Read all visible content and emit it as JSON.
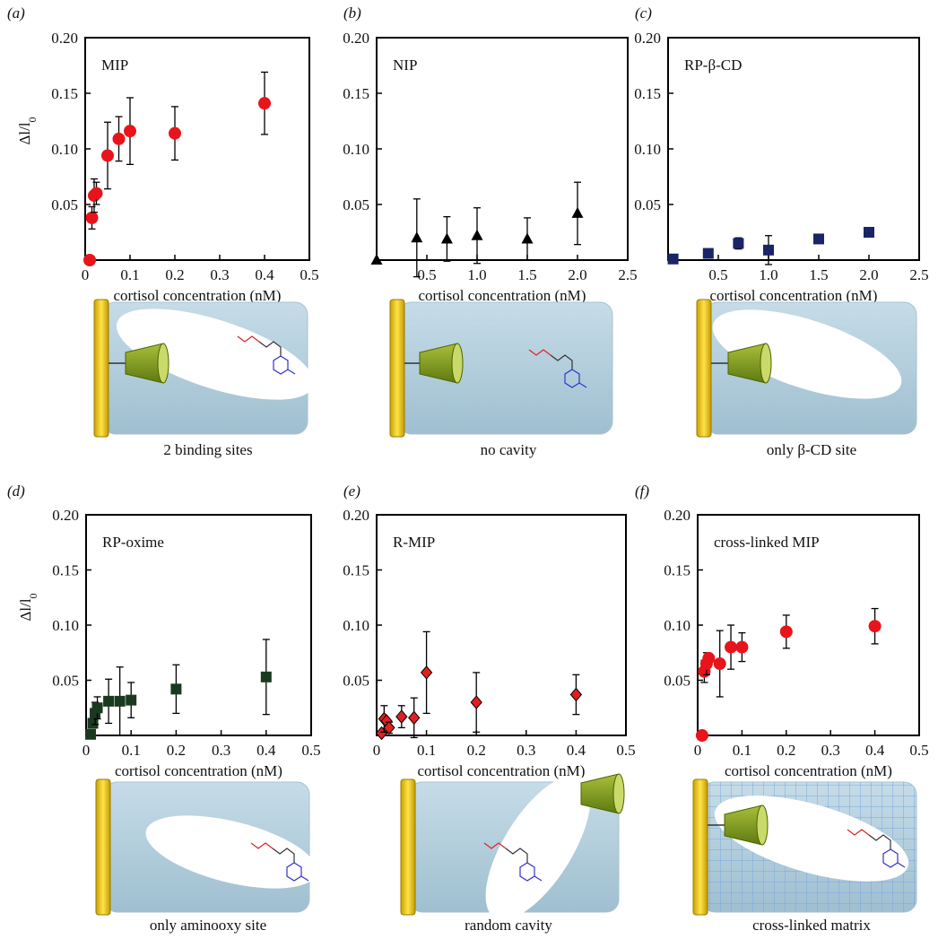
{
  "chart_data": [
    {
      "type": "scatter",
      "title": "MIP",
      "xlabel": "cortisol concentration (nM)",
      "ylabel": "Δl/l",
      "ylabel_subscript": "0",
      "x": [
        0.01,
        0.015,
        0.02,
        0.025,
        0.05,
        0.075,
        0.1,
        0.2,
        0.4
      ],
      "series": [
        {
          "color": "#e8141b",
          "marker": "circle",
          "values": [
            0.0,
            0.038,
            0.058,
            0.06,
            0.094,
            0.109,
            0.116,
            0.114,
            0.141
          ],
          "errors": [
            null,
            0.01,
            0.015,
            0.01,
            0.03,
            0.02,
            0.03,
            0.024,
            0.028
          ]
        }
      ],
      "xlim": [
        0,
        0.5
      ],
      "xticks": [
        0,
        0.1,
        0.2,
        0.3,
        0.4,
        0.5
      ],
      "ylim": [
        0,
        0.2
      ],
      "yticks": [
        0.05,
        {
          "value": 0.1,
          "label": "0.10"
        },
        0.15,
        {
          "value": 0.2,
          "label": "0.20"
        }
      ]
    },
    {
      "type": "scatter",
      "title": "NIP",
      "xlabel": "cortisol concentration (nM)",
      "x": [
        0,
        0.4,
        0.7,
        1.0,
        1.5,
        2.0
      ],
      "series": [
        {
          "color": "#000000",
          "marker": "triangle",
          "values": [
            0.0,
            0.02,
            0.019,
            0.022,
            0.019,
            0.042
          ],
          "errors": [
            null,
            0.035,
            0.02,
            0.025,
            0.019,
            0.028
          ]
        }
      ],
      "xlim": [
        0,
        2.5
      ],
      "xticks": [
        0.5,
        {
          "value": 1,
          "label": "1.0"
        },
        1.5,
        {
          "value": 2,
          "label": "2.0"
        },
        2.5
      ],
      "ylim": [
        0,
        0.2
      ],
      "yticks": [
        0.05,
        {
          "value": 0.1,
          "label": "0.10"
        },
        0.15,
        {
          "value": 0.2,
          "label": "0.20"
        }
      ]
    },
    {
      "type": "scatter",
      "title": "RP-β-CD",
      "xlabel": "cortisol concentration (nM)",
      "x": [
        0.05,
        0.4,
        0.7,
        1.0,
        1.5,
        2.0
      ],
      "series": [
        {
          "color": "#1a2466",
          "marker": "square",
          "values": [
            0.001,
            0.006,
            0.015,
            0.009,
            0.019,
            0.025
          ],
          "errors": [
            null,
            null,
            0.005,
            0.013,
            null,
            null
          ]
        }
      ],
      "xlim": [
        0,
        2.5
      ],
      "xticks": [
        0.5,
        {
          "value": 1,
          "label": "1.0"
        },
        1.5,
        {
          "value": 2,
          "label": "2.0"
        },
        2.5
      ],
      "ylim": [
        0,
        0.2
      ],
      "yticks": [
        0.05,
        {
          "value": 0.1,
          "label": "0.10"
        },
        0.15,
        {
          "value": 0.2,
          "label": "0.20"
        }
      ]
    },
    {
      "type": "scatter",
      "title": "RP-oxime",
      "xlabel": "cortisol concentration (nM)",
      "ylabel": "Δl/l",
      "ylabel_subscript": "0",
      "x": [
        0.01,
        0.015,
        0.02,
        0.025,
        0.05,
        0.075,
        0.1,
        0.2,
        0.4
      ],
      "series": [
        {
          "color": "#1a3a20",
          "marker": "square",
          "values": [
            0.001,
            0.011,
            0.02,
            0.025,
            0.031,
            0.031,
            0.032,
            0.042,
            0.053
          ],
          "errors": [
            null,
            null,
            0.01,
            0.01,
            0.02,
            0.031,
            0.016,
            0.022,
            0.034
          ]
        }
      ],
      "xlim": [
        0,
        0.5
      ],
      "xticks": [
        0,
        0.1,
        0.2,
        0.3,
        0.4,
        0.5
      ],
      "ylim": [
        0,
        0.2
      ],
      "yticks": [
        0.05,
        {
          "value": 0.1,
          "label": "0.10"
        },
        0.15,
        {
          "value": 0.2,
          "label": "0.20"
        }
      ]
    },
    {
      "type": "scatter",
      "title": "R-MIP",
      "xlabel": "cortisol concentration (nM)",
      "x": [
        0.01,
        0.015,
        0.02,
        0.025,
        0.05,
        0.075,
        0.1,
        0.2,
        0.4
      ],
      "series": [
        {
          "color": "#e02020",
          "marker": "diamond",
          "values": [
            0.002,
            0.015,
            0.013,
            0.007,
            0.017,
            0.016,
            0.057,
            0.03,
            0.037
          ],
          "errors": [
            null,
            0.012,
            null,
            0.005,
            0.01,
            0.018,
            0.037,
            0.027,
            0.018
          ]
        }
      ],
      "xlim": [
        0,
        0.5
      ],
      "xticks": [
        0,
        0.1,
        0.2,
        0.3,
        0.4,
        0.5
      ],
      "ylim": [
        0,
        0.2
      ],
      "yticks": [
        0.05,
        {
          "value": 0.1,
          "label": "0.10"
        },
        0.15,
        {
          "value": 0.2,
          "label": "0.20"
        }
      ]
    },
    {
      "type": "scatter",
      "title": "cross-linked MIP",
      "xlabel": "cortisol concentration (nM)",
      "x": [
        0.01,
        0.015,
        0.02,
        0.025,
        0.05,
        0.075,
        0.1,
        0.2,
        0.4
      ],
      "series": [
        {
          "color": "#e8141b",
          "marker": "circle",
          "values": [
            0.0,
            0.058,
            0.065,
            0.07,
            0.065,
            0.08,
            0.08,
            0.094,
            0.099
          ],
          "errors": [
            null,
            0.01,
            0.01,
            null,
            0.03,
            0.02,
            0.013,
            0.015,
            0.016
          ]
        }
      ],
      "xlim": [
        0,
        0.5
      ],
      "xticks": [
        0,
        0.1,
        0.2,
        0.3,
        0.4,
        0.5
      ],
      "ylim": [
        0,
        0.2
      ],
      "yticks": [
        0.05,
        {
          "value": 0.1,
          "label": "0.10"
        },
        0.15,
        {
          "value": 0.2,
          "label": "0.20"
        }
      ]
    }
  ],
  "panel_labels": [
    "(a)",
    "(b)",
    "(c)",
    "(d)",
    "(e)",
    "(f)"
  ],
  "captions": [
    "2 binding sites",
    "no cavity",
    "only β-CD site",
    "only aminooxy site",
    "random cavity",
    "cross-linked matrix"
  ]
}
